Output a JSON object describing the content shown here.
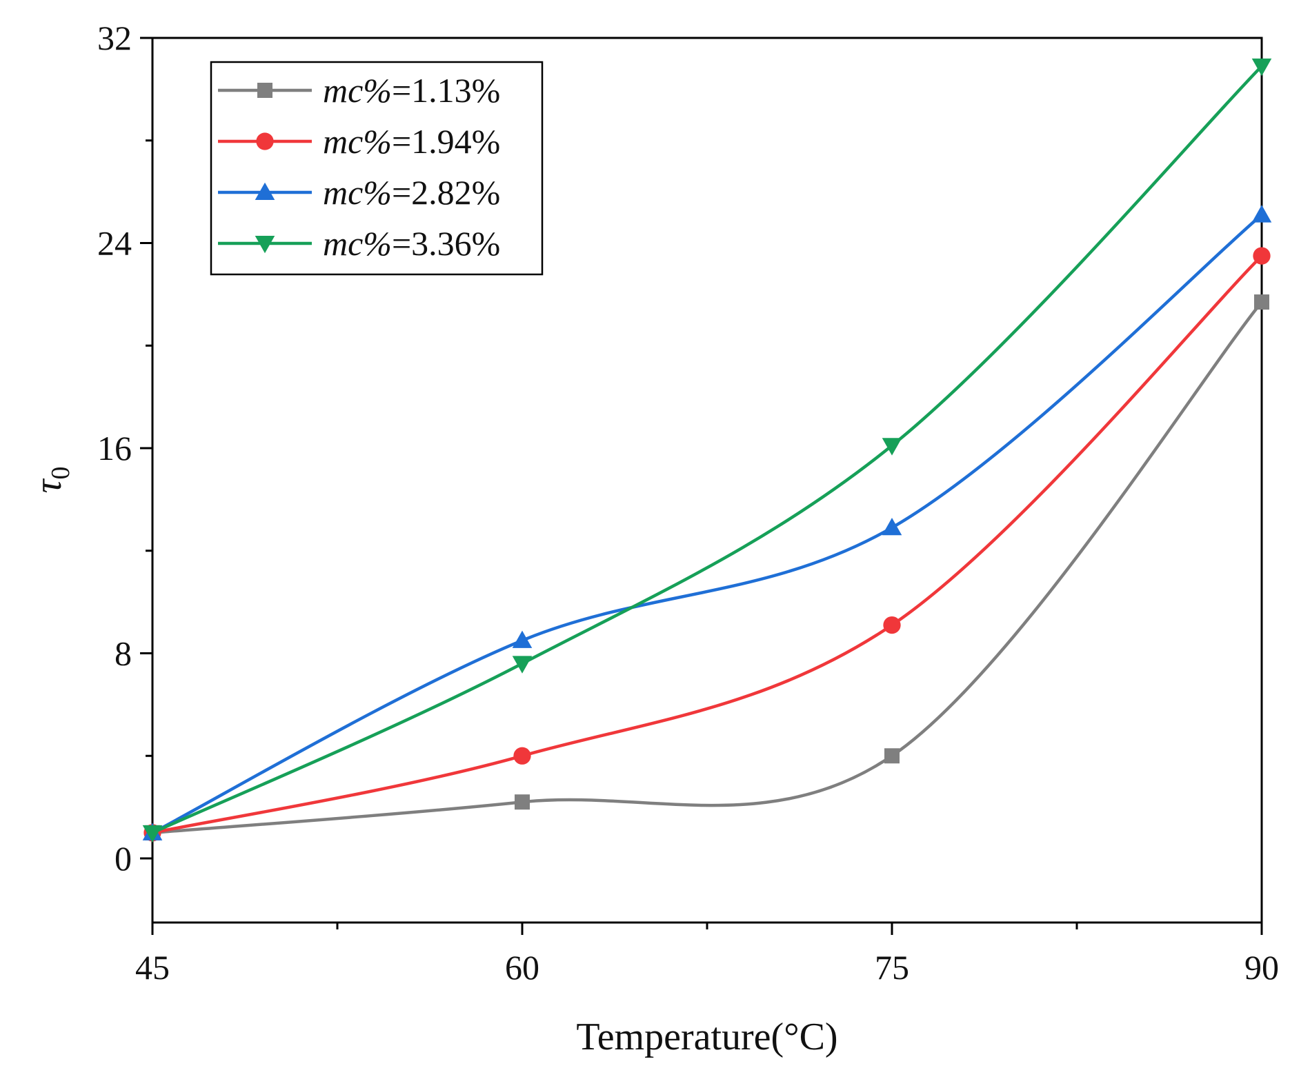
{
  "chart_data": {
    "type": "line",
    "title": "",
    "xlabel": "Temperature(°C)",
    "ylabel": "τ0",
    "ylabel_main": "τ",
    "ylabel_sub": "0",
    "x": [
      45,
      60,
      75,
      90
    ],
    "x_ticks": [
      45,
      60,
      75,
      90
    ],
    "x_tick_labels": [
      "45",
      "60",
      "75",
      "90"
    ],
    "xlim": [
      45,
      90
    ],
    "y_ticks": [
      0,
      8,
      16,
      24,
      32
    ],
    "y_tick_labels": [
      "0",
      "8",
      "16",
      "24",
      "32"
    ],
    "ylim": [
      -2.5,
      32
    ],
    "grid": false,
    "legend_position": "top-left",
    "series": [
      {
        "name": "mc%=1.13%",
        "label_italic": "mc%",
        "label_value": "=1.13%",
        "marker": "square",
        "color": "#7f7f7f",
        "values": [
          1.0,
          2.2,
          4.0,
          21.7
        ]
      },
      {
        "name": "mc%=1.94%",
        "label_italic": "mc%",
        "label_value": "=1.94%",
        "marker": "circle",
        "color": "#f0373a",
        "values": [
          1.0,
          4.0,
          9.1,
          23.5
        ]
      },
      {
        "name": "mc%=2.82%",
        "label_italic": "mc%",
        "label_value": "=2.82%",
        "marker": "triangle-up",
        "color": "#1f6fd6",
        "values": [
          1.0,
          8.5,
          12.9,
          25.1
        ]
      },
      {
        "name": "mc%=3.36%",
        "label_italic": "mc%",
        "label_value": "=3.36%",
        "marker": "triangle-down",
        "color": "#16a058",
        "values": [
          1.0,
          7.6,
          16.1,
          30.9
        ]
      }
    ]
  }
}
